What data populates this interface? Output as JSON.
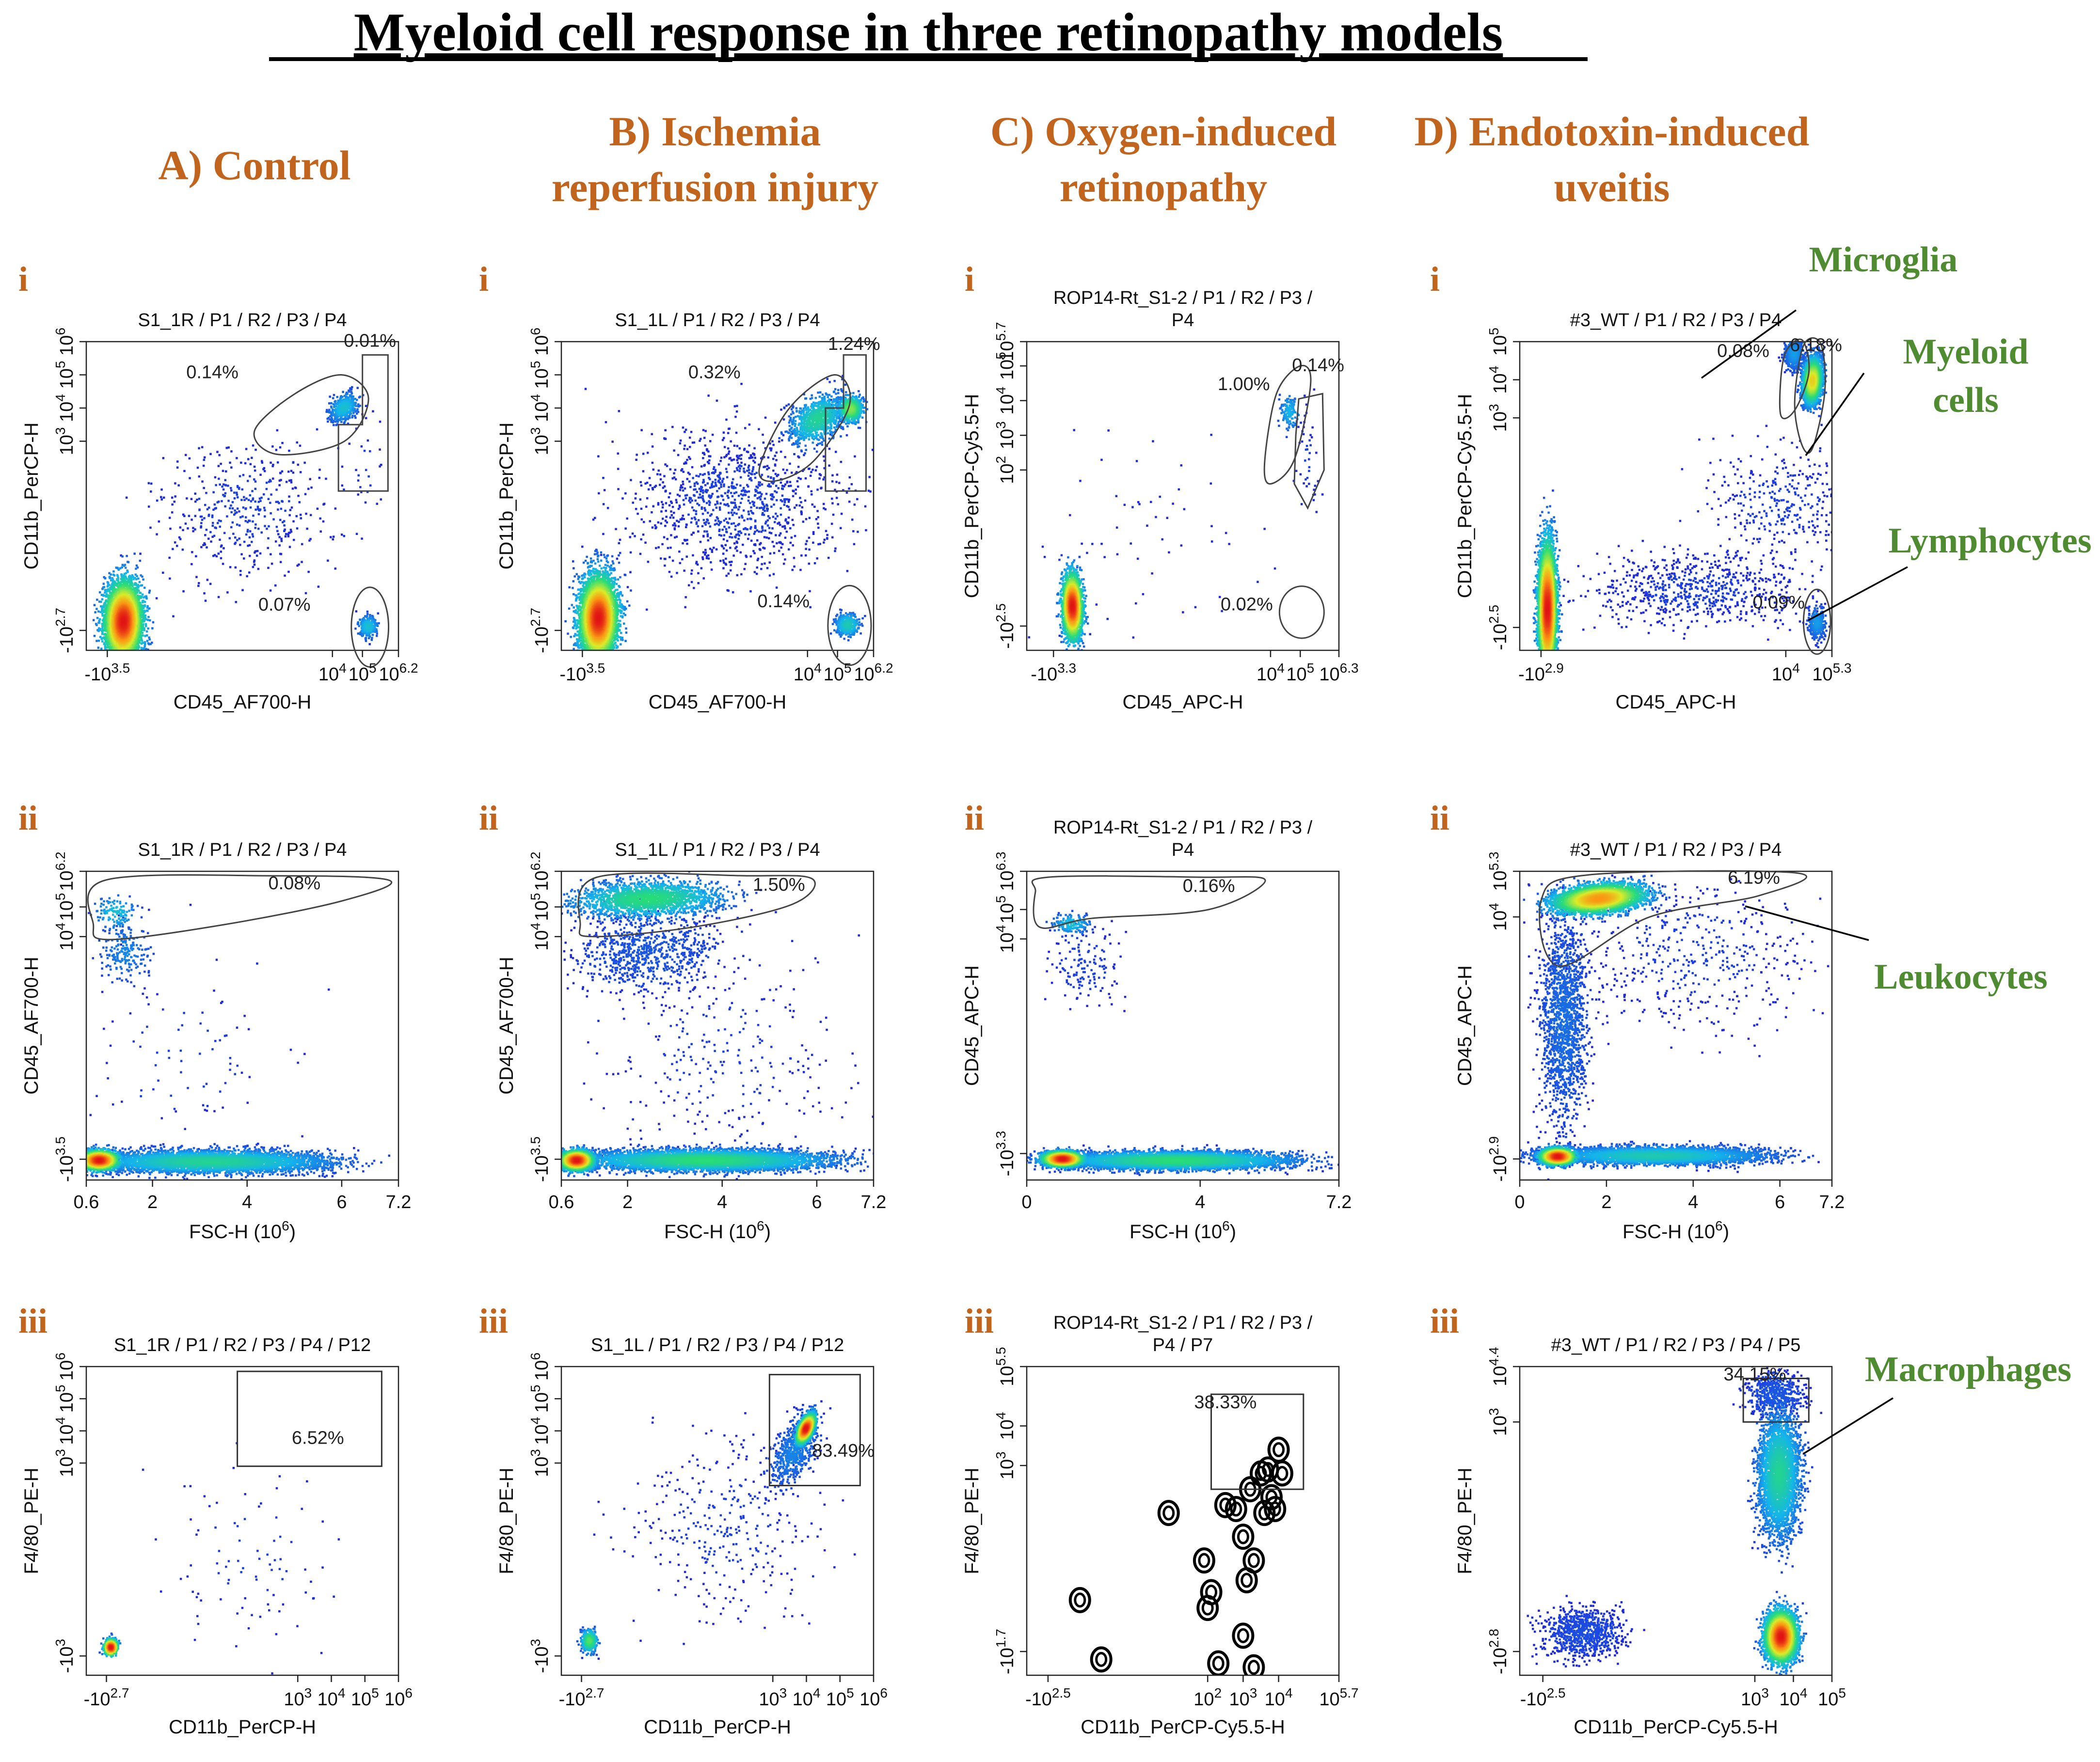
{
  "title": "Myeloid cell response in three retinopathy models",
  "colors": {
    "heading": "#c0641e",
    "annotation": "#4e8b31",
    "dots": "#1f2bd6",
    "gate": "#444444",
    "title": "#000000"
  },
  "columns": [
    {
      "line1": "A) Control",
      "line2": ""
    },
    {
      "line1": "B) Ischemia",
      "line2": "reperfusion injury"
    },
    {
      "line1": "C) Oxygen-induced",
      "line2": "retinopathy"
    },
    {
      "line1": "D) Endotoxin-induced",
      "line2": "uveitis"
    }
  ],
  "row_labels": [
    "i",
    "ii",
    "iii"
  ],
  "annotations": {
    "microglia": "Microglia",
    "myeloid": [
      "Myeloid",
      "cells"
    ],
    "lymphocytes": "Lymphocytes",
    "leukocytes": "Leukocytes",
    "macrophages": "Macrophages"
  },
  "chart_data": [
    {
      "id": "A-i",
      "type": "scatter",
      "style": "density",
      "title": [
        "S1_1R / P1 / R2 / P3 / P4"
      ],
      "xlabel": "CD45_AF700-H",
      "ylabel": "CD11b_PerCP-H",
      "log": true,
      "xticks": [
        {
          "b": "-10",
          "e": "3.5",
          "v": -3.5
        },
        {
          "b": "10",
          "e": "4",
          "v": 4
        },
        {
          "b": "10",
          "e": "5",
          "v": 5
        },
        {
          "b": "10",
          "e": "6.2",
          "v": 6.2
        }
      ],
      "yticks": [
        {
          "b": "-10",
          "e": "2.7",
          "v": -2.7
        },
        {
          "b": "10",
          "e": "3",
          "v": 3
        },
        {
          "b": "10",
          "e": "4",
          "v": 4
        },
        {
          "b": "10",
          "e": "5",
          "v": 5
        },
        {
          "b": "10",
          "e": "6",
          "v": 6
        }
      ],
      "xlim": [
        -4.2,
        6.2
      ],
      "ylim": [
        -3.3,
        6
      ],
      "gate_labels": [
        "0.14%",
        "0.01%",
        "0.07%"
      ]
    },
    {
      "id": "B-i",
      "type": "scatter",
      "style": "density",
      "title": [
        "S1_1L / P1 / R2 / P3 / P4"
      ],
      "xlabel": "CD45_AF700-H",
      "ylabel": "CD11b_PerCP-H",
      "log": true,
      "xticks": [
        {
          "b": "-10",
          "e": "3.5",
          "v": -3.5
        },
        {
          "b": "10",
          "e": "4",
          "v": 4
        },
        {
          "b": "10",
          "e": "5",
          "v": 5
        },
        {
          "b": "10",
          "e": "6.2",
          "v": 6.2
        }
      ],
      "yticks": [
        {
          "b": "-10",
          "e": "2.7",
          "v": -2.7
        },
        {
          "b": "10",
          "e": "3",
          "v": 3
        },
        {
          "b": "10",
          "e": "4",
          "v": 4
        },
        {
          "b": "10",
          "e": "5",
          "v": 5
        },
        {
          "b": "10",
          "e": "6",
          "v": 6
        }
      ],
      "xlim": [
        -4.2,
        6.2
      ],
      "ylim": [
        -3.3,
        6
      ],
      "gate_labels": [
        "0.32%",
        "1.24%",
        "0.14%"
      ]
    },
    {
      "id": "C-i",
      "type": "scatter",
      "style": "density",
      "title": [
        "ROP14-Rt_S1-2 / P1 / R2 / P3 /",
        "P4"
      ],
      "xlabel": "CD45_APC-H",
      "ylabel": "CD11b_PerCP-Cy5.5-H",
      "log": true,
      "xticks": [
        {
          "b": "-10",
          "e": "3.3",
          "v": -3.3
        },
        {
          "b": "10",
          "e": "4",
          "v": 4
        },
        {
          "b": "10",
          "e": "5",
          "v": 5
        },
        {
          "b": "10",
          "e": "6.3",
          "v": 6.3
        }
      ],
      "yticks": [
        {
          "b": "-10",
          "e": "2.5",
          "v": -2.5
        },
        {
          "b": "10",
          "e": "2",
          "v": 2
        },
        {
          "b": "10",
          "e": "3",
          "v": 3
        },
        {
          "b": "10",
          "e": "4",
          "v": 4
        },
        {
          "b": "10",
          "e": "5",
          "v": 5
        },
        {
          "b": "10",
          "e": "5.7",
          "v": 5.7
        }
      ],
      "xlim": [
        -4.2,
        6.3
      ],
      "ylim": [
        -3.2,
        5.7
      ],
      "gate_labels": [
        "1.00%",
        "0.14%",
        "0.02%"
      ]
    },
    {
      "id": "D-i",
      "type": "scatter",
      "style": "density",
      "title": [
        "#3_WT / P1 / R2 / P3 / P4"
      ],
      "xlabel": "CD45_APC-H",
      "ylabel": "CD11b_PerCP-Cy5.5-H",
      "log": true,
      "xticks": [
        {
          "b": "-10",
          "e": "2.9",
          "v": -2.9
        },
        {
          "b": "10",
          "e": "4",
          "v": 4
        },
        {
          "b": "10",
          "e": "5.3",
          "v": 5.3
        }
      ],
      "yticks": [
        {
          "b": "-10",
          "e": "2.5",
          "v": -2.5
        },
        {
          "b": "10",
          "e": "3",
          "v": 3
        },
        {
          "b": "10",
          "e": "4",
          "v": 4
        },
        {
          "b": "10",
          "e": "5",
          "v": 5
        }
      ],
      "xlim": [
        -3.5,
        5.3
      ],
      "ylim": [
        -3.1,
        5
      ],
      "gate_labels": [
        "0.08%",
        "6.18%",
        "0.09%"
      ]
    },
    {
      "id": "A-ii",
      "type": "scatter",
      "style": "density",
      "title": [
        "S1_1R / P1 / R2 / P3 / P4"
      ],
      "xlabel": "FSC-H (10",
      "xlabel_sup": "6",
      "ylabel": "CD45_AF700-H",
      "log": false,
      "xticks": [
        {
          "t": "0.6",
          "v": 0.6
        },
        {
          "t": "2",
          "v": 2
        },
        {
          "t": "4",
          "v": 4
        },
        {
          "t": "6",
          "v": 6
        },
        {
          "t": "7.2",
          "v": 7.2
        }
      ],
      "yticks": [
        {
          "b": "-10",
          "e": "3.5",
          "v": -3.5
        },
        {
          "b": "10",
          "e": "4",
          "v": 4
        },
        {
          "b": "10",
          "e": "5",
          "v": 5
        },
        {
          "b": "10",
          "e": "6.2",
          "v": 6.2
        }
      ],
      "xlim": [
        0.6,
        7.2
      ],
      "ylim": [
        -4.2,
        6.2
      ],
      "gate_labels": [
        "0.08%"
      ]
    },
    {
      "id": "B-ii",
      "type": "scatter",
      "style": "density",
      "title": [
        "S1_1L / P1 / R2 / P3 / P4"
      ],
      "xlabel": "FSC-H (10",
      "xlabel_sup": "6",
      "ylabel": "CD45_AF700-H",
      "log": false,
      "xticks": [
        {
          "t": "0.6",
          "v": 0.6
        },
        {
          "t": "2",
          "v": 2
        },
        {
          "t": "4",
          "v": 4
        },
        {
          "t": "6",
          "v": 6
        },
        {
          "t": "7.2",
          "v": 7.2
        }
      ],
      "yticks": [
        {
          "b": "-10",
          "e": "3.5",
          "v": -3.5
        },
        {
          "b": "10",
          "e": "4",
          "v": 4
        },
        {
          "b": "10",
          "e": "5",
          "v": 5
        },
        {
          "b": "10",
          "e": "6.2",
          "v": 6.2
        }
      ],
      "xlim": [
        0.6,
        7.2
      ],
      "ylim": [
        -4.2,
        6.2
      ],
      "gate_labels": [
        "1.50%"
      ]
    },
    {
      "id": "C-ii",
      "type": "scatter",
      "style": "density",
      "title": [
        "ROP14-Rt_S1-2 / P1 / R2 / P3 /",
        "P4"
      ],
      "xlabel": "FSC-H (10",
      "xlabel_sup": "6",
      "ylabel": "CD45_APC-H",
      "log": false,
      "xticks": [
        {
          "t": "0",
          "v": 0
        },
        {
          "t": "4",
          "v": 4
        },
        {
          "t": "7.2",
          "v": 7.2
        }
      ],
      "yticks": [
        {
          "b": "-10",
          "e": "3.3",
          "v": -3.3
        },
        {
          "b": "10",
          "e": "4",
          "v": 4
        },
        {
          "b": "10",
          "e": "5",
          "v": 5
        },
        {
          "b": "10",
          "e": "6.3",
          "v": 6.3
        }
      ],
      "xlim": [
        0,
        7.2
      ],
      "ylim": [
        -4.2,
        6.3
      ],
      "gate_labels": [
        "0.16%"
      ]
    },
    {
      "id": "D-ii",
      "type": "scatter",
      "style": "density",
      "title": [
        "#3_WT / P1 / R2 / P3 / P4"
      ],
      "xlabel": "FSC-H (10",
      "xlabel_sup": "6",
      "ylabel": "CD45_APC-H",
      "log": false,
      "xticks": [
        {
          "t": "0",
          "v": 0
        },
        {
          "t": "2",
          "v": 2
        },
        {
          "t": "4",
          "v": 4
        },
        {
          "t": "6",
          "v": 6
        },
        {
          "t": "7.2",
          "v": 7.2
        }
      ],
      "yticks": [
        {
          "b": "-10",
          "e": "2.9",
          "v": -2.9
        },
        {
          "b": "10",
          "e": "4",
          "v": 4
        },
        {
          "b": "10",
          "e": "5.3",
          "v": 5.3
        }
      ],
      "xlim": [
        0,
        7.2
      ],
      "ylim": [
        -3.5,
        5.3
      ],
      "gate_labels": [
        "6.19%"
      ]
    },
    {
      "id": "A-iii",
      "type": "scatter",
      "style": "density",
      "title": [
        "S1_1R / P1 / R2 / P3 / P4 / P12"
      ],
      "xlabel": "CD11b_PerCP-H",
      "ylabel": "F4/80_PE-H",
      "log": true,
      "xticks": [
        {
          "b": "-10",
          "e": "2.7",
          "v": -2.7
        },
        {
          "b": "10",
          "e": "3",
          "v": 3
        },
        {
          "b": "10",
          "e": "4",
          "v": 4
        },
        {
          "b": "10",
          "e": "5",
          "v": 5
        },
        {
          "b": "10",
          "e": "6",
          "v": 6
        }
      ],
      "yticks": [
        {
          "b": "-10",
          "e": "3",
          "v": -3
        },
        {
          "b": "10",
          "e": "3",
          "v": 3
        },
        {
          "b": "10",
          "e": "4",
          "v": 4
        },
        {
          "b": "10",
          "e": "5",
          "v": 5
        },
        {
          "b": "10",
          "e": "6",
          "v": 6
        }
      ],
      "xlim": [
        -3.3,
        6
      ],
      "ylim": [
        -3.6,
        6
      ],
      "gate_labels": [
        "6.52%"
      ]
    },
    {
      "id": "B-iii",
      "type": "scatter",
      "style": "density",
      "title": [
        "S1_1L / P1 / R2 / P3 / P4 / P12"
      ],
      "xlabel": "CD11b_PerCP-H",
      "ylabel": "F4/80_PE-H",
      "log": true,
      "xticks": [
        {
          "b": "-10",
          "e": "2.7",
          "v": -2.7
        },
        {
          "b": "10",
          "e": "3",
          "v": 3
        },
        {
          "b": "10",
          "e": "4",
          "v": 4
        },
        {
          "b": "10",
          "e": "5",
          "v": 5
        },
        {
          "b": "10",
          "e": "6",
          "v": 6
        }
      ],
      "yticks": [
        {
          "b": "-10",
          "e": "3",
          "v": -3
        },
        {
          "b": "10",
          "e": "3",
          "v": 3
        },
        {
          "b": "10",
          "e": "4",
          "v": 4
        },
        {
          "b": "10",
          "e": "5",
          "v": 5
        },
        {
          "b": "10",
          "e": "6",
          "v": 6
        }
      ],
      "xlim": [
        -3.3,
        6
      ],
      "ylim": [
        -3.6,
        6
      ],
      "gate_labels": [
        "83.49%"
      ]
    },
    {
      "id": "C-iii",
      "type": "scatter",
      "style": "contour",
      "title": [
        "ROP14-Rt_S1-2 / P1 / R2 / P3 /",
        "P4 / P7"
      ],
      "xlabel": "CD11b_PerCP-Cy5.5-H",
      "ylabel": "F4/80_PE-H",
      "log": true,
      "xticks": [
        {
          "b": "-10",
          "e": "2.5",
          "v": -2.5
        },
        {
          "b": "10",
          "e": "2",
          "v": 2
        },
        {
          "b": "10",
          "e": "3",
          "v": 3
        },
        {
          "b": "10",
          "e": "4",
          "v": 4
        },
        {
          "b": "10",
          "e": "5.7",
          "v": 5.7
        }
      ],
      "yticks": [
        {
          "b": "-10",
          "e": "1.7",
          "v": -1.7
        },
        {
          "b": "10",
          "e": "3",
          "v": 3
        },
        {
          "b": "10",
          "e": "4",
          "v": 4
        },
        {
          "b": "10",
          "e": "5.5",
          "v": 5.5
        }
      ],
      "xlim": [
        -3.1,
        5.7
      ],
      "ylim": [
        -2.3,
        5.5
      ],
      "gate_labels": [
        "38.33%"
      ]
    },
    {
      "id": "D-iii",
      "type": "scatter",
      "style": "density",
      "title": [
        "#3_WT / P1 / R2 / P3 / P4 / P5"
      ],
      "xlabel": "CD11b_PerCP-Cy5.5-H",
      "ylabel": "F4/80_PE-H",
      "log": true,
      "xticks": [
        {
          "b": "-10",
          "e": "2.5",
          "v": -2.5
        },
        {
          "b": "10",
          "e": "3",
          "v": 3
        },
        {
          "b": "10",
          "e": "4",
          "v": 4
        },
        {
          "b": "10",
          "e": "5",
          "v": 5
        }
      ],
      "yticks": [
        {
          "b": "-10",
          "e": "2.8",
          "v": -2.8
        },
        {
          "b": "10",
          "e": "3",
          "v": 3
        },
        {
          "b": "10",
          "e": "4.4",
          "v": 4.4
        }
      ],
      "xlim": [
        -3.1,
        5
      ],
      "ylim": [
        -3.4,
        4.4
      ],
      "gate_labels": [
        "34.15%"
      ]
    }
  ]
}
